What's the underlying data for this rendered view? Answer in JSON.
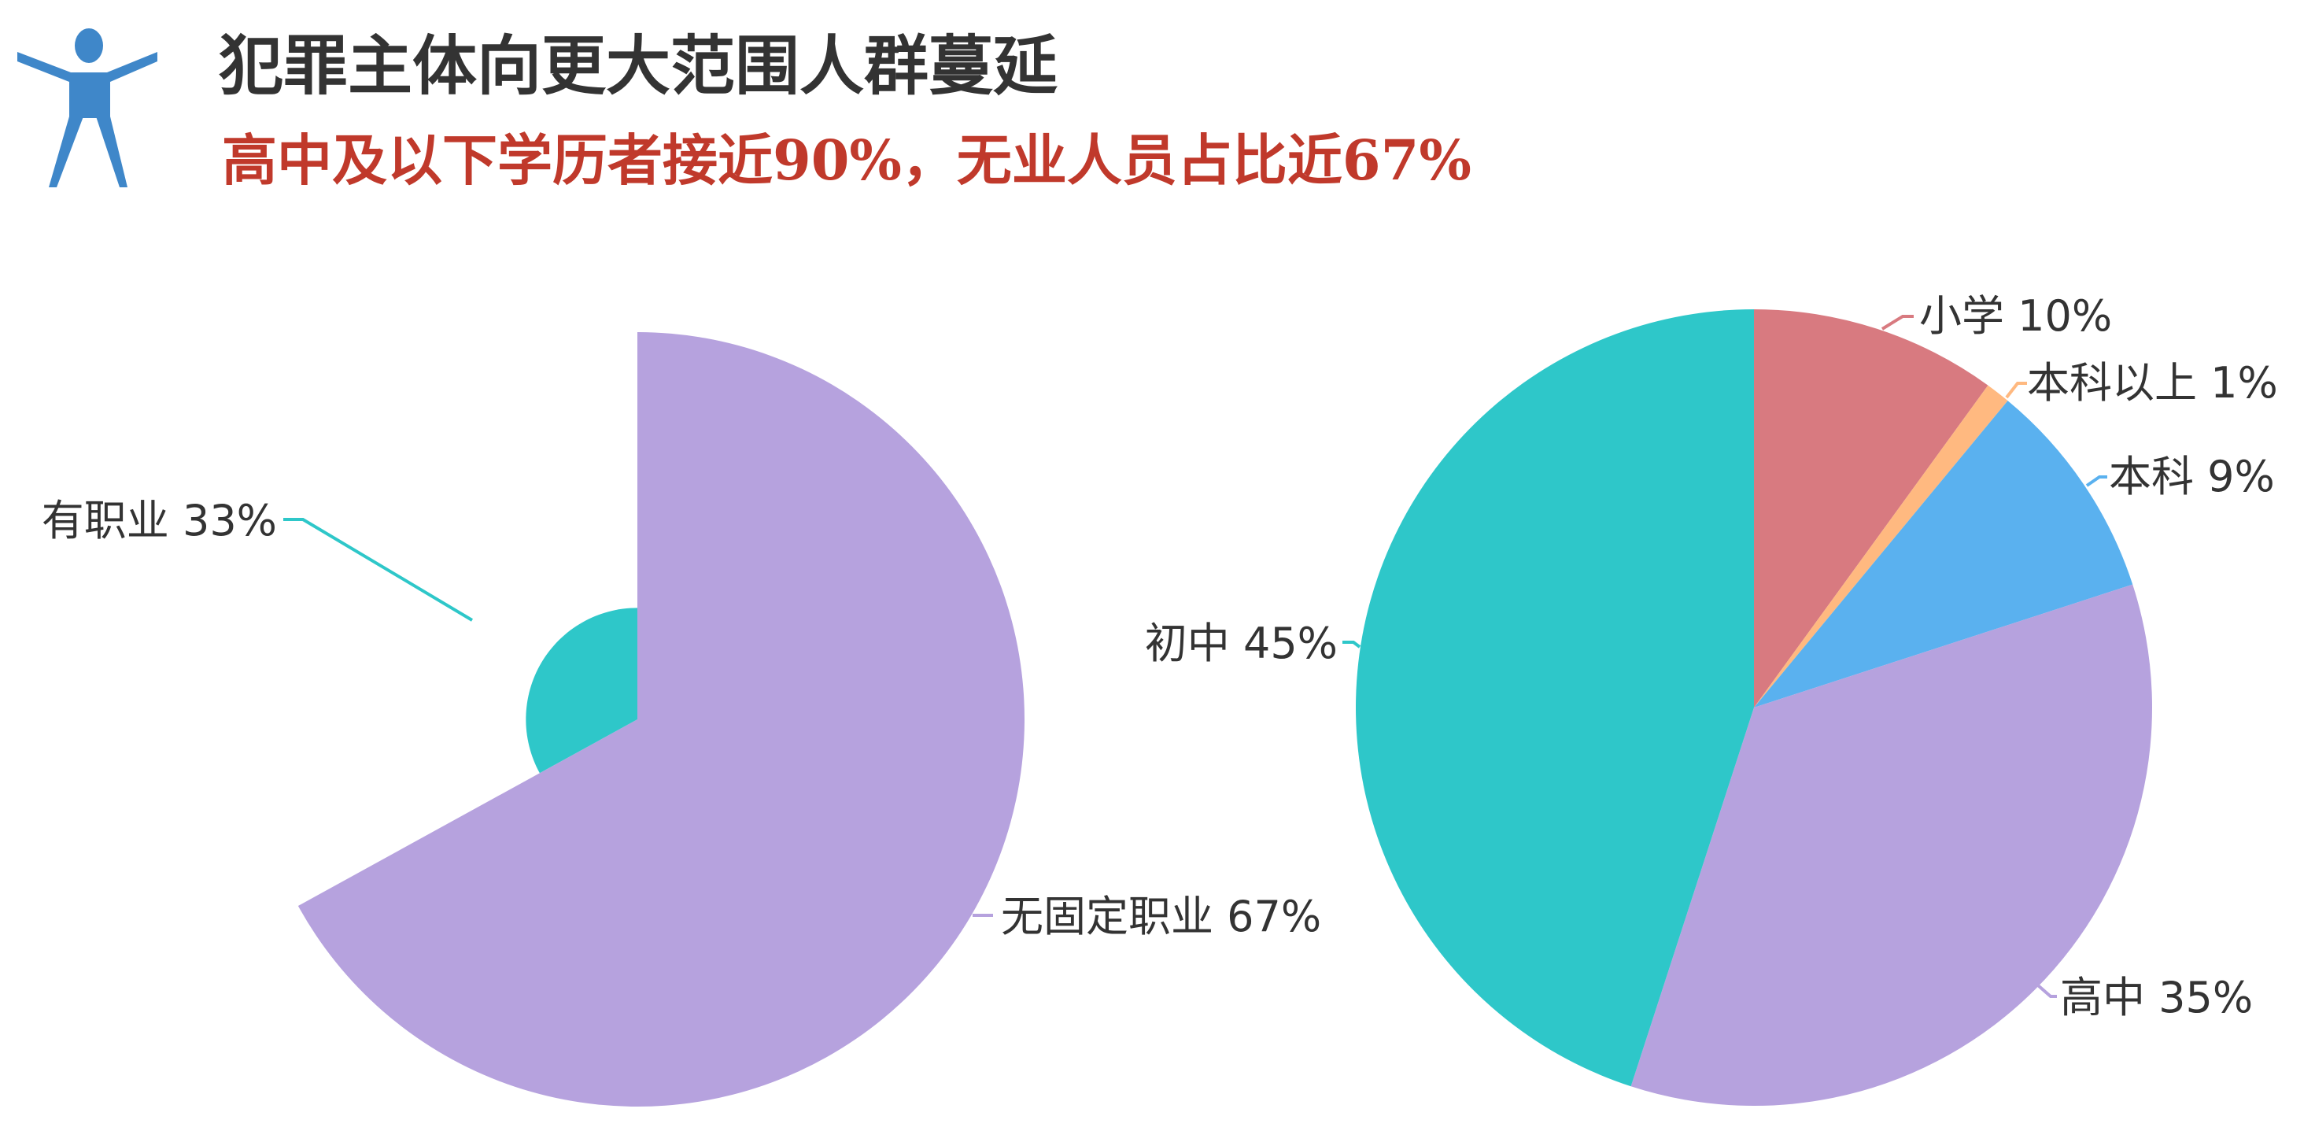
{
  "header": {
    "title": "犯罪主体向更大范围人群蔓延",
    "subtitle": "高中及以下学历者接近90%，无业人员占比近67%",
    "icon": "person-icon",
    "icon_color": "#3f87c9",
    "title_color": "#333333",
    "subtitle_color": "#c0392b"
  },
  "chart_data": [
    {
      "type": "pie",
      "variant": "rose",
      "slices": [
        {
          "name": "无固定职业",
          "value": 67,
          "label": "无固定职业 67%",
          "color": "#b6a2de"
        },
        {
          "name": "有职业",
          "value": 33,
          "label": "有职业 33%",
          "color": "#2ec7c9"
        }
      ]
    },
    {
      "type": "pie",
      "slices": [
        {
          "name": "小学",
          "value": 10,
          "label": "小学 10%",
          "color": "#d87a80"
        },
        {
          "name": "本科以上",
          "value": 1,
          "label": "本科以上 1%",
          "color": "#ffb980"
        },
        {
          "name": "本科",
          "value": 9,
          "label": "本科 9%",
          "color": "#5ab1ef"
        },
        {
          "name": "高中",
          "value": 35,
          "label": "高中 35%",
          "color": "#b6a2de"
        },
        {
          "name": "初中",
          "value": 45,
          "label": "初中 45%",
          "color": "#2ec7c9"
        }
      ]
    }
  ]
}
